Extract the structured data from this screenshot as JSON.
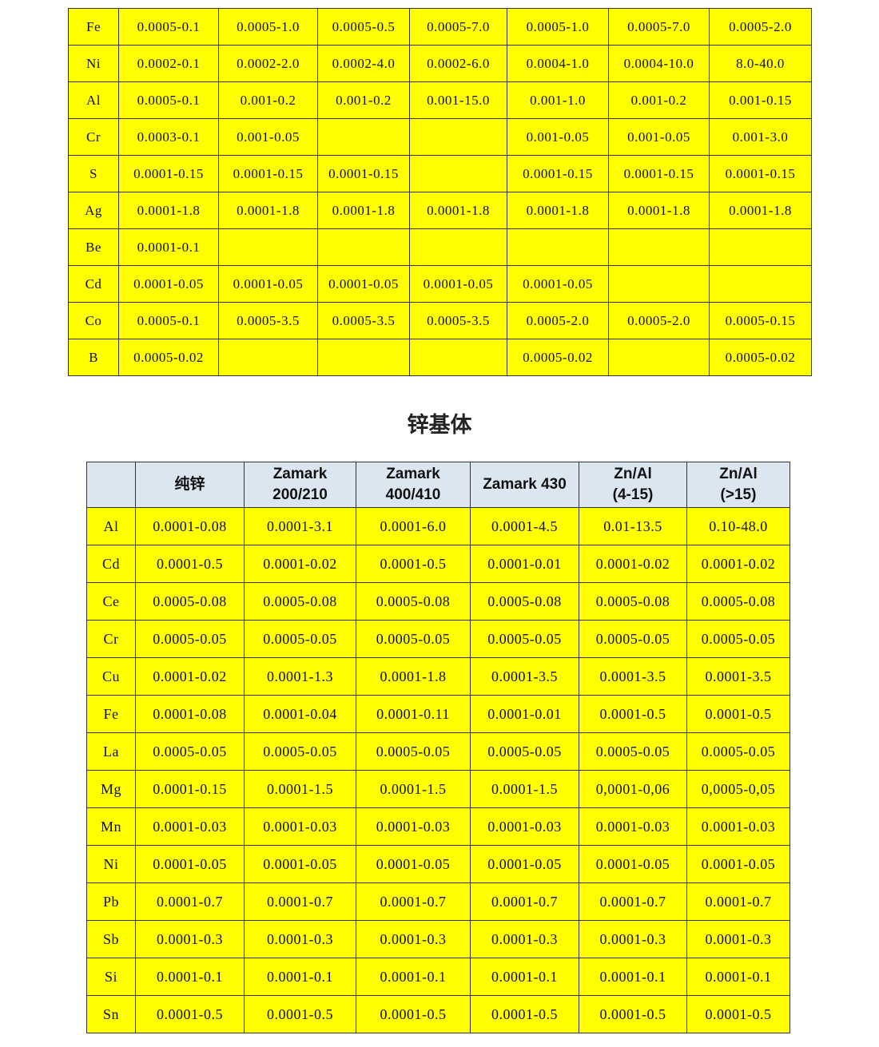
{
  "table1": {
    "rows": [
      {
        "element": "Fe",
        "values": [
          "0.0005-0.1",
          "0.0005-1.0",
          "0.0005-0.5",
          "0.0005-7.0",
          "0.0005-1.0",
          "0.0005-7.0",
          "0.0005-2.0"
        ]
      },
      {
        "element": "Ni",
        "values": [
          "0.0002-0.1",
          "0.0002-2.0",
          "0.0002-4.0",
          "0.0002-6.0",
          "0.0004-1.0",
          "0.0004-10.0",
          "8.0-40.0"
        ]
      },
      {
        "element": "Al",
        "values": [
          "0.0005-0.1",
          "0.001-0.2",
          "0.001-0.2",
          "0.001-15.0",
          "0.001-1.0",
          "0.001-0.2",
          "0.001-0.15"
        ]
      },
      {
        "element": "Cr",
        "values": [
          "0.0003-0.1",
          "0.001-0.05",
          "",
          "",
          "0.001-0.05",
          "0.001-0.05",
          "0.001-3.0"
        ]
      },
      {
        "element": "S",
        "values": [
          "0.0001-0.15",
          "0.0001-0.15",
          "0.0001-0.15",
          "",
          "0.0001-0.15",
          "0.0001-0.15",
          "0.0001-0.15"
        ]
      },
      {
        "element": "Ag",
        "values": [
          "0.0001-1.8",
          "0.0001-1.8",
          "0.0001-1.8",
          "0.0001-1.8",
          "0.0001-1.8",
          "0.0001-1.8",
          "0.0001-1.8"
        ]
      },
      {
        "element": "Be",
        "values": [
          "0.0001-0.1",
          "",
          "",
          "",
          "",
          "",
          ""
        ]
      },
      {
        "element": "Cd",
        "values": [
          "0.0001-0.05",
          "0.0001-0.05",
          "0.0001-0.05",
          "0.0001-0.05",
          "0.0001-0.05",
          "",
          ""
        ]
      },
      {
        "element": "Co",
        "values": [
          "0.0005-0.1",
          "0.0005-3.5",
          "0.0005-3.5",
          "0.0005-3.5",
          "0.0005-2.0",
          "0.0005-2.0",
          "0.0005-0.15"
        ]
      },
      {
        "element": "B",
        "values": [
          "0.0005-0.02",
          "",
          "",
          "",
          "0.0005-0.02",
          "",
          "0.0005-0.02"
        ]
      }
    ]
  },
  "section_title": "锌基体",
  "table2": {
    "headers": [
      "",
      "纯锌",
      "Zamark\n200/210",
      "Zamark\n400/410",
      "Zamark 430",
      "Zn/Al\n(4-15)",
      "Zn/Al\n(>15)"
    ],
    "rows": [
      {
        "element": "Al",
        "values": [
          "0.0001-0.08",
          "0.0001-3.1",
          "0.0001-6.0",
          "0.0001-4.5",
          "0.01-13.5",
          "0.10-48.0"
        ]
      },
      {
        "element": "Cd",
        "values": [
          "0.0001-0.5",
          "0.0001-0.02",
          "0.0001-0.5",
          "0.0001-0.01",
          "0.0001-0.02",
          "0.0001-0.02"
        ]
      },
      {
        "element": "Ce",
        "values": [
          "0.0005-0.08",
          "0.0005-0.08",
          "0.0005-0.08",
          "0.0005-0.08",
          "0.0005-0.08",
          "0.0005-0.08"
        ]
      },
      {
        "element": "Cr",
        "values": [
          "0.0005-0.05",
          "0.0005-0.05",
          "0.0005-0.05",
          "0.0005-0.05",
          "0.0005-0.05",
          "0.0005-0.05"
        ]
      },
      {
        "element": "Cu",
        "values": [
          "0.0001-0.02",
          "0.0001-1.3",
          "0.0001-1.8",
          "0.0001-3.5",
          "0.0001-3.5",
          "0.0001-3.5"
        ]
      },
      {
        "element": "Fe",
        "values": [
          "0.0001-0.08",
          "0.0001-0.04",
          "0.0001-0.11",
          "0.0001-0.01",
          "0.0001-0.5",
          "0.0001-0.5"
        ]
      },
      {
        "element": "La",
        "values": [
          "0.0005-0.05",
          "0.0005-0.05",
          "0.0005-0.05",
          "0.0005-0.05",
          "0.0005-0.05",
          "0.0005-0.05"
        ]
      },
      {
        "element": "Mg",
        "values": [
          "0.0001-0.15",
          "0.0001-1.5",
          "0.0001-1.5",
          "0.0001-1.5",
          "0,0001-0,06",
          "0,0005-0,05"
        ]
      },
      {
        "element": "Mn",
        "values": [
          "0.0001-0.03",
          "0.0001-0.03",
          "0.0001-0.03",
          "0.0001-0.03",
          "0.0001-0.03",
          "0.0001-0.03"
        ]
      },
      {
        "element": "Ni",
        "values": [
          "0.0001-0.05",
          "0.0001-0.05",
          "0.0001-0.05",
          "0.0001-0.05",
          "0.0001-0.05",
          "0.0001-0.05"
        ]
      },
      {
        "element": "Pb",
        "values": [
          "0.0001-0.7",
          "0.0001-0.7",
          "0.0001-0.7",
          "0.0001-0.7",
          "0.0001-0.7",
          "0.0001-0.7"
        ]
      },
      {
        "element": "Sb",
        "values": [
          "0.0001-0.3",
          "0.0001-0.3",
          "0.0001-0.3",
          "0.0001-0.3",
          "0.0001-0.3",
          "0.0001-0.3"
        ]
      },
      {
        "element": "Si",
        "values": [
          "0.0001-0.1",
          "0.0001-0.1",
          "0.0001-0.1",
          "0.0001-0.1",
          "0.0001-0.1",
          "0.0001-0.1"
        ]
      },
      {
        "element": "Sn",
        "values": [
          "0.0001-0.5",
          "0.0001-0.5",
          "0.0001-0.5",
          "0.0001-0.5",
          "0.0001-0.5",
          "0.0001-0.5"
        ]
      }
    ]
  }
}
